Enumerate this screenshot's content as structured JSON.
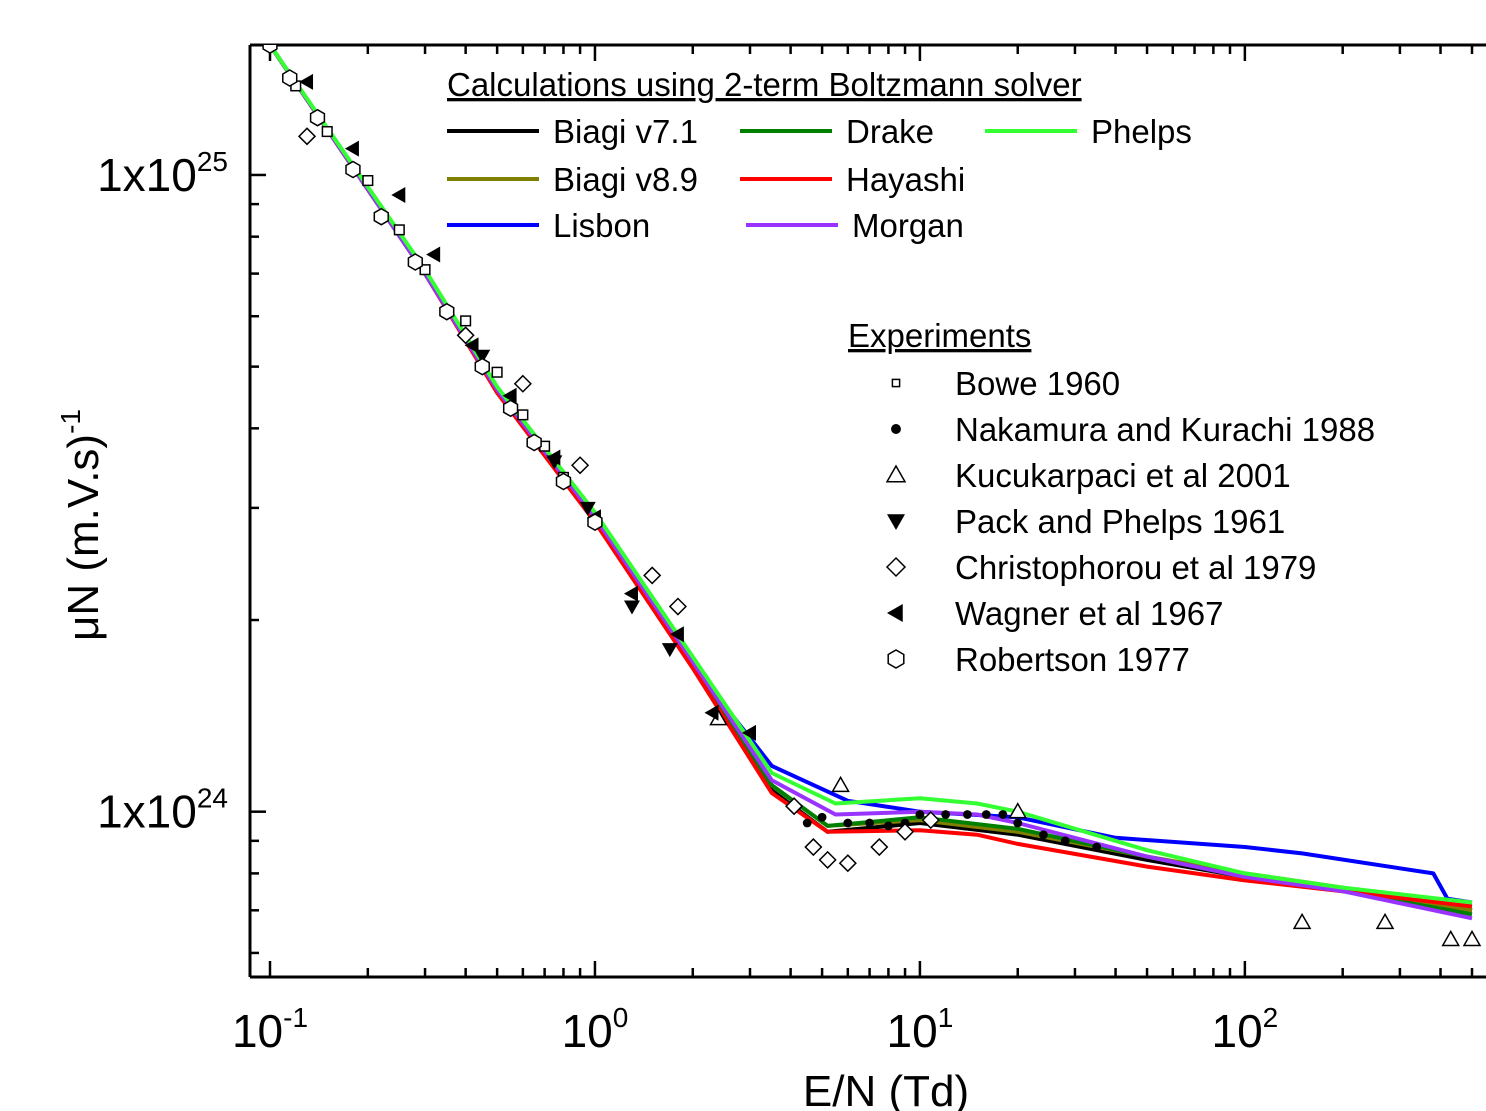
{
  "chart_data": {
    "type": "line",
    "title": "",
    "xlabel": "E/N (Td)",
    "ylabel": "μN (m.V.s)",
    "ylabel_superscript": "-1",
    "x_scale": "log",
    "y_scale": "log",
    "xlim": [
      0.1,
      500
    ],
    "ylim": [
      5.5e+23,
      1.6e+25
    ],
    "x_ticks": [
      {
        "value": 0.1,
        "base": "10",
        "exp": "-1"
      },
      {
        "value": 1,
        "base": "10",
        "exp": "0"
      },
      {
        "value": 10,
        "base": "10",
        "exp": "1"
      },
      {
        "value": 100,
        "base": "10",
        "exp": "2"
      }
    ],
    "y_ticks": [
      {
        "value": 1e+24,
        "base": "1x10",
        "exp": "24"
      },
      {
        "value": 1e+25,
        "base": "1x10",
        "exp": "25"
      }
    ],
    "grid": false,
    "legend_calc_title": "Calculations using 2-term Boltzmann solver",
    "legend_exp_title": "Experiments",
    "series": [
      {
        "name": "Biagi v7.1",
        "color": "#000000",
        "x": [
          0.1,
          0.3,
          0.5,
          1,
          2,
          3.5,
          5.2,
          10,
          20,
          50,
          100,
          200,
          500
        ],
        "y": [
          1.6e+25,
          7e+24,
          4.6e+24,
          2.9e+24,
          1.7e+24,
          1.08e+24,
          9.3e+23,
          9.6e+23,
          9.2e+23,
          8.4e+23,
          7.9e+23,
          7.55e+23,
          7e+23
        ]
      },
      {
        "name": "Biagi v8.9",
        "color": "#808000",
        "x": [
          0.1,
          0.3,
          0.5,
          1,
          2,
          3.5,
          5.2,
          10,
          20,
          50,
          100,
          200,
          500
        ],
        "y": [
          1.6e+25,
          7e+24,
          4.6e+24,
          2.9e+24,
          1.7e+24,
          1.1e+24,
          9.5e+23,
          9.7e+23,
          9.3e+23,
          8.5e+23,
          8e+23,
          7.6e+23,
          7e+23
        ]
      },
      {
        "name": "Lisbon",
        "color": "#0000ff",
        "x": [
          0.1,
          0.3,
          0.5,
          1,
          2,
          3.5,
          6,
          10,
          20,
          40,
          100,
          150,
          380,
          420,
          500
        ],
        "y": [
          1.6e+25,
          7e+24,
          4.6e+24,
          2.9e+24,
          1.7e+24,
          1.18e+24,
          1.04e+24,
          1e+24,
          9.8e+23,
          9.1e+23,
          8.8e+23,
          8.6e+23,
          8e+23,
          7.3e+23,
          7.2e+23
        ]
      },
      {
        "name": "Drake",
        "color": "#008000",
        "x": [
          0.1,
          0.3,
          0.5,
          1,
          2,
          3.5,
          5.2,
          10,
          20,
          50,
          100,
          200,
          500
        ],
        "y": [
          1.6e+25,
          7e+24,
          4.6e+24,
          2.9e+24,
          1.7e+24,
          1.1e+24,
          9.5e+23,
          9.8e+23,
          9.4e+23,
          8.5e+23,
          7.9e+23,
          7.5e+23,
          6.9e+23
        ]
      },
      {
        "name": "Hayashi",
        "color": "#ff0000",
        "x": [
          0.1,
          0.3,
          0.5,
          1,
          2,
          3.5,
          5.2,
          10,
          15,
          20,
          50,
          100,
          200,
          500
        ],
        "y": [
          1.6e+25,
          7e+24,
          4.55e+24,
          2.85e+24,
          1.68e+24,
          1.07e+24,
          9.3e+23,
          9.35e+23,
          9.2e+23,
          8.9e+23,
          8.2e+23,
          7.8e+23,
          7.5e+23,
          7.1e+23
        ]
      },
      {
        "name": "Morgan",
        "color": "#9933ff",
        "x": [
          0.1,
          0.3,
          0.5,
          1,
          2,
          3.5,
          5.5,
          10,
          15,
          20,
          50,
          100,
          200,
          500
        ],
        "y": [
          1.6e+25,
          7e+24,
          4.6e+24,
          2.9e+24,
          1.72e+24,
          1.12e+24,
          9.9e+23,
          1e+24,
          9.9e+23,
          9.6e+23,
          8.5e+23,
          7.9e+23,
          7.5e+23,
          6.8e+23
        ]
      },
      {
        "name": "Phelps",
        "color": "#33ff33",
        "x": [
          0.1,
          0.3,
          0.5,
          1,
          2,
          3.5,
          5.5,
          10,
          15,
          20,
          50,
          100,
          200,
          500
        ],
        "y": [
          1.6e+25,
          7.1e+24,
          4.65e+24,
          2.95e+24,
          1.75e+24,
          1.15e+24,
          1.03e+24,
          1.05e+24,
          1.03e+24,
          1e+24,
          8.7e+23,
          8e+23,
          7.6e+23,
          7.2e+23
        ]
      }
    ],
    "experiments": [
      {
        "name": "Bowe 1960",
        "marker": "square-open",
        "x": [
          0.1,
          0.12,
          0.15,
          0.2,
          0.25,
          0.3,
          0.4,
          0.5,
          0.6,
          0.7,
          0.8,
          1.0
        ],
        "y": [
          1.6e+25,
          1.38e+25,
          1.17e+25,
          9.8e+24,
          8.2e+24,
          7.1e+24,
          5.9e+24,
          4.9e+24,
          4.2e+24,
          3.75e+24,
          3.35e+24,
          2.85e+24
        ]
      },
      {
        "name": "Nakamura and Kurachi 1988",
        "marker": "circle-filled",
        "x": [
          4.5,
          5,
          6,
          7,
          8,
          9,
          10,
          12,
          14,
          16,
          18,
          20,
          24,
          28,
          35
        ],
        "y": [
          9.6e+23,
          9.8e+23,
          9.6e+23,
          9.6e+23,
          9.5e+23,
          9.6e+23,
          9.9e+23,
          9.9e+23,
          9.9e+23,
          9.9e+23,
          9.9e+23,
          9.6e+23,
          9.2e+23,
          9e+23,
          8.8e+23
        ]
      },
      {
        "name": "Kucukarpaci et al 2001",
        "marker": "triangle-up-open",
        "x": [
          2.4,
          5.7,
          20,
          150,
          270,
          430,
          500
        ],
        "y": [
          1.4e+24,
          1.1e+24,
          1e+24,
          6.7e+23,
          6.7e+23,
          6.3e+23,
          6.3e+23
        ]
      },
      {
        "name": "Pack and Phelps 1961",
        "marker": "triangle-down-filled",
        "x": [
          0.45,
          0.75,
          0.95,
          1.3,
          1.7
        ],
        "y": [
          5.2e+24,
          3.55e+24,
          3e+24,
          2.1e+24,
          1.8e+24
        ]
      },
      {
        "name": "Christophorou et al 1979",
        "marker": "diamond-open",
        "x": [
          0.13,
          0.4,
          0.6,
          0.9,
          1.5,
          1.8,
          4.1,
          4.7,
          5.2,
          6.0,
          7.5,
          9.0,
          10.8
        ],
        "y": [
          1.15e+25,
          5.6e+24,
          4.7e+24,
          3.5e+24,
          2.35e+24,
          2.1e+24,
          1.02e+24,
          8.8e+23,
          8.4e+23,
          8.3e+23,
          8.8e+23,
          9.3e+23,
          9.7e+23
        ]
      },
      {
        "name": "Wagner et al 1967",
        "marker": "triangle-left-filled",
        "x": [
          0.13,
          0.18,
          0.25,
          0.32,
          0.42,
          0.55,
          0.75,
          1.0,
          1.3,
          1.8,
          2.3,
          3.0
        ],
        "y": [
          1.4e+25,
          1.1e+25,
          9.3e+24,
          7.5e+24,
          5.4e+24,
          4.5e+24,
          3.6e+24,
          2.9e+24,
          2.2e+24,
          1.9e+24,
          1.43e+24,
          1.33e+24
        ]
      },
      {
        "name": "Robertson 1977",
        "marker": "hexagon-open",
        "x": [
          0.1,
          0.115,
          0.14,
          0.18,
          0.22,
          0.28,
          0.35,
          0.45,
          0.55,
          0.65,
          0.8,
          1.0
        ],
        "y": [
          1.6e+25,
          1.42e+25,
          1.23e+25,
          1.02e+25,
          8.6e+24,
          7.3e+24,
          6.1e+24,
          5e+24,
          4.3e+24,
          3.8e+24,
          3.3e+24,
          2.85e+24
        ]
      }
    ]
  }
}
